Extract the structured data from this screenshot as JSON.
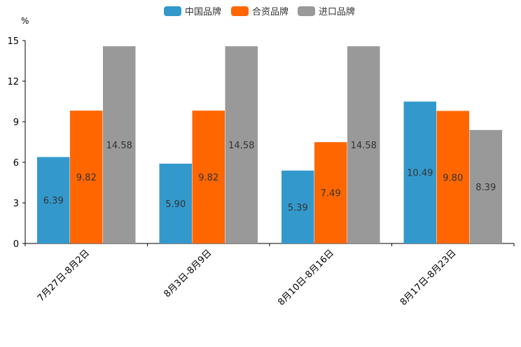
{
  "chart_data": {
    "type": "bar",
    "title": "",
    "unit": "%",
    "xlabel": "",
    "ylabel": "%",
    "ylim": [
      0,
      15
    ],
    "yticks": [
      0,
      3,
      6,
      9,
      12,
      15
    ],
    "grid": false,
    "legend_position": "top-center",
    "categories": [
      "7月27日-8月2日",
      "8月3日-8月9日",
      "8月10日-8月16日",
      "8月17日-8月23日"
    ],
    "series": [
      {
        "name": "中国品牌",
        "color": "#3399CC",
        "values": [
          6.39,
          5.9,
          5.39,
          10.49
        ],
        "labels": [
          "6.39",
          "5.90",
          "5.39",
          "10.49"
        ]
      },
      {
        "name": "合资品牌",
        "color": "#FF6600",
        "values": [
          9.82,
          9.82,
          7.49,
          9.8
        ],
        "labels": [
          "9.82",
          "9.82",
          "7.49",
          "9.80"
        ]
      },
      {
        "name": "进口品牌",
        "color": "#999999",
        "values": [
          14.58,
          14.58,
          14.58,
          8.39
        ],
        "labels": [
          "14.58",
          "14.58",
          "14.58",
          "8.39"
        ]
      }
    ]
  }
}
